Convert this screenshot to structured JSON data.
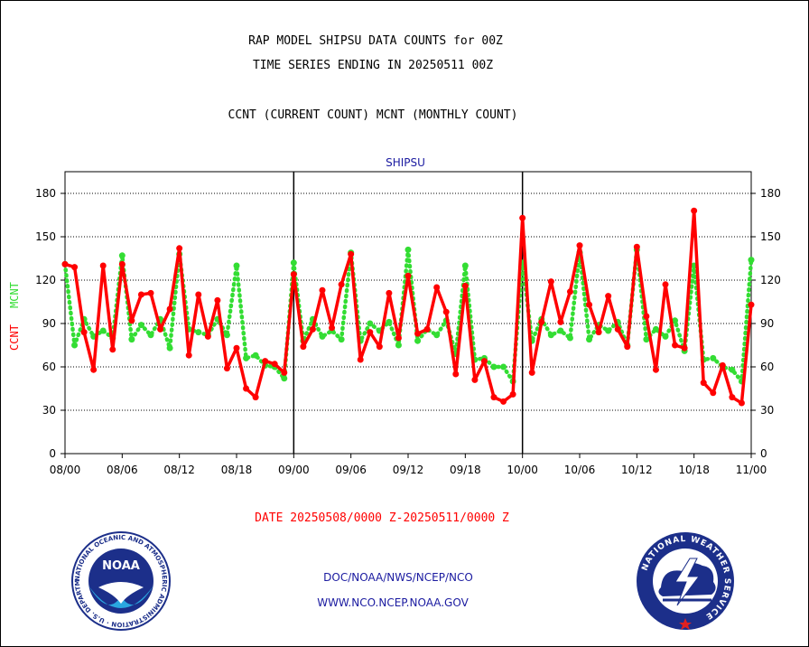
{
  "header": {
    "title_line1": "RAP MODEL SHIPSU DATA COUNTS for 00Z",
    "title_line2": "TIME SERIES ENDING IN 20250511 00Z",
    "subtitle": "CCNT (CURRENT COUNT) MCNT (MONTHLY COUNT)"
  },
  "footer": {
    "date_range": "DATE 20250508/0000 Z-20250511/0000 Z",
    "org_line": "DOC/NOAA/NWS/NCEP/NCO",
    "url": "WWW.NCO.NCEP.NOAA.GOV"
  },
  "logos": {
    "noaa_text": "NOAA",
    "noaa_ring_text": "NATIONAL OCEANIC AND ATMOSPHERIC ADMINISTRATION · U.S. DEPARTMENT OF COMMERCE",
    "nws_ring_text": "NATIONAL WEATHER SERVICE"
  },
  "colors": {
    "ccnt": "#ff0000",
    "mcnt": "#33dd33",
    "text_blue": "#1a1aa0"
  },
  "chart_data": {
    "type": "line",
    "title": "SHIPSU",
    "ylabel_left": [
      "CCNT",
      "MCNT"
    ],
    "ylim": [
      0,
      195
    ],
    "yticks": [
      0,
      30,
      60,
      90,
      120,
      150,
      180
    ],
    "xlim": [
      0,
      72
    ],
    "xticks": [
      {
        "x": 0,
        "label": "08/00"
      },
      {
        "x": 6,
        "label": "08/06"
      },
      {
        "x": 12,
        "label": "08/12"
      },
      {
        "x": 18,
        "label": "08/18"
      },
      {
        "x": 24,
        "label": "09/00"
      },
      {
        "x": 30,
        "label": "09/06"
      },
      {
        "x": 36,
        "label": "09/12"
      },
      {
        "x": 42,
        "label": "09/18"
      },
      {
        "x": 48,
        "label": "10/00"
      },
      {
        "x": 54,
        "label": "10/06"
      },
      {
        "x": 60,
        "label": "10/12"
      },
      {
        "x": 66,
        "label": "10/18"
      },
      {
        "x": 72,
        "label": "11/00"
      }
    ],
    "day_separators": [
      24,
      48
    ],
    "grid": true,
    "series": [
      {
        "name": "CCNT",
        "color": "#ff0000",
        "style": "solid",
        "values": [
          131,
          129,
          84,
          58,
          130,
          72,
          131,
          92,
          110,
          111,
          86,
          100,
          142,
          68,
          110,
          81,
          106,
          59,
          73,
          45,
          39,
          64,
          62,
          56,
          124,
          74,
          86,
          113,
          87,
          117,
          138,
          65,
          84,
          74,
          111,
          80,
          123,
          83,
          86,
          115,
          98,
          55,
          116,
          51,
          64,
          39,
          36,
          41,
          163,
          56,
          91,
          119,
          91,
          112,
          144,
          103,
          84,
          109,
          86,
          74,
          143,
          95,
          58,
          117,
          75,
          73,
          168,
          49,
          42,
          61,
          39,
          35,
          103
        ]
      },
      {
        "name": "MCNT",
        "color": "#33dd33",
        "style": "dotted",
        "values": [
          131,
          75,
          93,
          81,
          85,
          80,
          137,
          79,
          89,
          82,
          93,
          73,
          138,
          86,
          84,
          82,
          93,
          82,
          130,
          66,
          68,
          61,
          60,
          52,
          132,
          78,
          93,
          81,
          85,
          79,
          139,
          78,
          90,
          85,
          91,
          75,
          141,
          78,
          86,
          82,
          92,
          69,
          130,
          65,
          66,
          60,
          60,
          50,
          132,
          78,
          93,
          82,
          85,
          80,
          139,
          79,
          89,
          85,
          91,
          75,
          141,
          79,
          86,
          81,
          92,
          71,
          130,
          65,
          66,
          60,
          58,
          50,
          134
        ]
      }
    ]
  }
}
